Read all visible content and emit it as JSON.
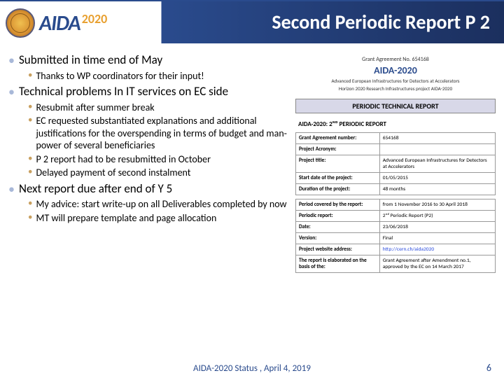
{
  "header": {
    "logo_text": "AIDA",
    "logo_year": "2020",
    "title": "Second Periodic Report P 2"
  },
  "bullets": [
    {
      "text": "Submitted in time end of May",
      "children": [
        {
          "text": "Thanks to WP coordinators for their input!"
        }
      ]
    },
    {
      "text": "Technical problems In IT services on EC side",
      "children": [
        {
          "text": "Resubmit after summer break"
        },
        {
          "text": "EC requested substantiated explanations and additional justifications for the overspending in terms of budget and man-power of several beneficiaries"
        },
        {
          "text": "P 2 report had to be resubmitted in October"
        },
        {
          "text": "Delayed payment of second instalment"
        }
      ]
    },
    {
      "text": "Next report due after end of Y 5",
      "children": [
        {
          "text": "My advice: start write-up on all Deliverables completed by now"
        },
        {
          "text": "MT will prepare template and page allocation"
        }
      ]
    }
  ],
  "doc": {
    "grant": "Grant Agreement No. 654168",
    "name": "AIDA-2020",
    "subtitle1": "Advanced European Infrastructures for Detectors at Accelerators",
    "subtitle2": "Horizon 2020 Research Infrastructures project AIDA-2020",
    "periodic_label": "PERIODIC TECHNICAL REPORT",
    "title2": "AIDA-2020: 2ᴺᴰ PERIODIC REPORT",
    "rows": {
      "r0l": "Grant Agreement number:",
      "r0v": "654168",
      "r1l": "Project Acronym:",
      "r1v": "",
      "r2l": "Project title:",
      "r2v": "Advanced European Infrastructures for Detectors at Accelerators",
      "r3l": "Start date of the project:",
      "r3v": "01/05/2015",
      "r4l": "Duration of the project:",
      "r4v": "48 months",
      "r5l": "Period covered by the report:",
      "r5v": "from 1 November 2016 to 30 April 2018",
      "r6l": "Periodic report:",
      "r6v": "2ⁿᵈ Periodic Report (P2)",
      "r7l": "Date:",
      "r7v": "23/06/2018",
      "r8l": "Version:",
      "r8v": "Final",
      "r9l": "Project website address:",
      "r9v": "http://cern.ch/aida2020",
      "r10l": "The report is elaborated on the basis of the:",
      "r10v": "Grant Agreement after Amendment no.1, approved by the EC on 14 March 2017"
    }
  },
  "footer": {
    "text": "AIDA-2020 Status , April 4, 2019",
    "page": "6"
  },
  "colors": {
    "header_blue": "#2a4b8d",
    "bullet_l1": "#a8b8d8",
    "bullet_l2": "#c8a060"
  }
}
